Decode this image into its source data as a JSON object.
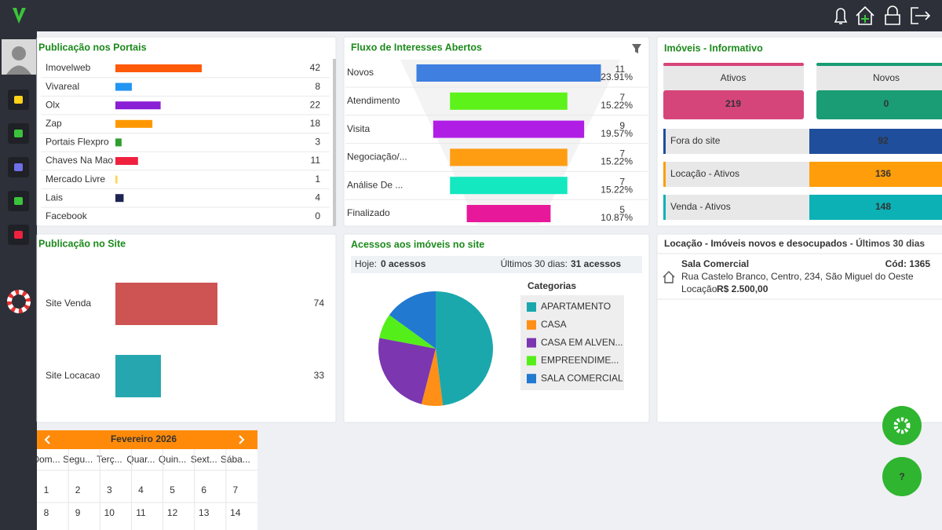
{
  "chart_data": [
    {
      "type": "hbar",
      "title": "Publicação nos Portais",
      "categories": [
        "Imovelweb",
        "Vivareal",
        "Olx",
        "Zap",
        "Portais Flexpro",
        "Chaves Na Mao",
        "Mercado Livre",
        "Lais",
        "Facebook"
      ],
      "values": [
        42,
        8,
        22,
        18,
        3,
        11,
        1,
        4,
        0
      ],
      "colors": [
        "#ff5a0a",
        "#2196f3",
        "#8a1fd6",
        "#ff9800",
        "#2e9e2e",
        "#f0213f",
        "#ffd54f",
        "#1d2451",
        "#a8e6e6"
      ]
    },
    {
      "type": "funnel",
      "title": "Fluxo de Interesses Abertos",
      "categories": [
        "Novos",
        "Atendimento",
        "Visita",
        "Negociação/...",
        "Análise De ...",
        "Finalizado"
      ],
      "values": [
        11,
        7,
        9,
        7,
        7,
        5
      ],
      "share_labels": [
        "23.91%",
        "15.22%",
        "19.57%",
        "15.22%",
        "15.22%",
        "10.87%"
      ],
      "colors": [
        "#3f7fe0",
        "#5df21a",
        "#b01ee6",
        "#ff9d12",
        "#14e8c0",
        "#e8189a"
      ]
    },
    {
      "type": "hbar-site",
      "title": "Publicação no Site",
      "categories": [
        "Site Venda",
        "Site Locacao"
      ],
      "values": [
        74,
        33
      ],
      "colors": [
        "#cd5452",
        "#26a6ae"
      ]
    },
    {
      "type": "pie",
      "title": "Acessos aos imóveis no site",
      "legend_title": "Categorias",
      "categories": [
        "APARTAMENTO",
        "CASA",
        "CASA EM ALVEN...",
        "EMPREENDIME...",
        "SALA COMERCIAL"
      ],
      "values": [
        48,
        6,
        24,
        7,
        15
      ],
      "colors": [
        "#1aa8ad",
        "#ff8f16",
        "#7b36b0",
        "#54ef1a",
        "#2179d0"
      ]
    }
  ],
  "accesses": {
    "today_label": "Hoje:",
    "today": "0 acessos",
    "period_label": "Últimos 30 dias:",
    "period": "31 acessos"
  },
  "info": {
    "title": "Imóveis - Informativo",
    "cards": [
      {
        "label": "Ativos",
        "value": 219,
        "color": "#d6457a"
      },
      {
        "label": "Novos",
        "value": 0,
        "color": "#1a9c74"
      }
    ],
    "rows": [
      {
        "label": "Fora do site",
        "value": 92,
        "color": "#1f4e9c"
      },
      {
        "label": "Locação - Ativos",
        "value": 136,
        "color": "#ff9d0b"
      },
      {
        "label": "Venda - Ativos",
        "value": 148,
        "color": "#0cb1b6"
      }
    ]
  },
  "rental": {
    "title": "Locação - Imóveis novos e desocupados",
    "suffix": " - Últimos 30 dias",
    "listing": {
      "name": "Sala Comercial",
      "code": "Cód: 1365",
      "address": "Rua Castelo Branco, Centro, 234, São Miguel do Oeste",
      "price_label": "Locação:",
      "price": "R$  2.500,00"
    }
  },
  "calendar": {
    "month": "Fevereiro 2026",
    "weekdays": [
      "Dom...",
      "Segu...",
      "Terç...",
      "Quar...",
      "Quin...",
      "Sext...",
      "Sába..."
    ],
    "days": [
      [
        1,
        2,
        3,
        4,
        5,
        6,
        7
      ],
      [
        8,
        9,
        10,
        11,
        12,
        13,
        14
      ]
    ]
  },
  "help": {
    "label": "?"
  }
}
